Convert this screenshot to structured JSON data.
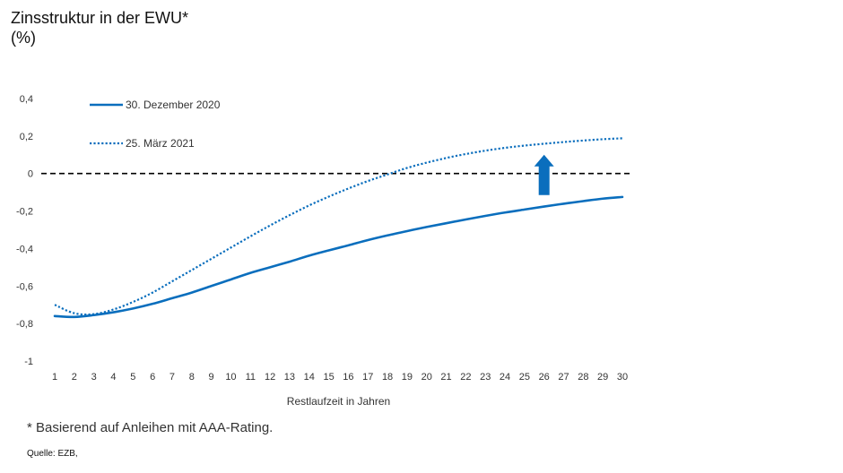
{
  "chart_data": {
    "type": "line",
    "title": "Zinsstruktur in der EWU*",
    "unit": "(%)",
    "xlabel": "Restlaufzeit in Jahren",
    "ylabel": "",
    "x": [
      1,
      2,
      3,
      4,
      5,
      6,
      7,
      8,
      9,
      10,
      11,
      12,
      13,
      14,
      15,
      16,
      17,
      18,
      19,
      20,
      21,
      22,
      23,
      24,
      25,
      26,
      27,
      28,
      29,
      30
    ],
    "xlim": [
      1,
      30
    ],
    "ylim": [
      -1,
      0.4
    ],
    "yticks": [
      0.4,
      0.2,
      0,
      -0.2,
      -0.4,
      -0.6,
      -0.8,
      -1
    ],
    "ytick_labels": [
      "0,4",
      "0,2",
      "0",
      "-0,2",
      "-0,4",
      "-0,6",
      "-0,8",
      "-1"
    ],
    "series": [
      {
        "name": "30. Dezember 2020",
        "style": "solid",
        "color": "#0a6ebd",
        "values": [
          -0.76,
          -0.765,
          -0.755,
          -0.74,
          -0.72,
          -0.695,
          -0.665,
          -0.635,
          -0.6,
          -0.565,
          -0.53,
          -0.5,
          -0.47,
          -0.438,
          -0.41,
          -0.383,
          -0.355,
          -0.33,
          -0.307,
          -0.285,
          -0.265,
          -0.245,
          -0.226,
          -0.208,
          -0.192,
          -0.176,
          -0.161,
          -0.147,
          -0.134,
          -0.125
        ]
      },
      {
        "name": "25. März 2021",
        "style": "dotted",
        "color": "#0a6ebd",
        "values": [
          -0.7,
          -0.745,
          -0.75,
          -0.725,
          -0.685,
          -0.635,
          -0.575,
          -0.515,
          -0.455,
          -0.395,
          -0.335,
          -0.277,
          -0.222,
          -0.17,
          -0.123,
          -0.08,
          -0.04,
          -0.005,
          0.03,
          0.058,
          0.083,
          0.104,
          0.122,
          0.137,
          0.149,
          0.159,
          0.168,
          0.176,
          0.183,
          0.188
        ]
      }
    ],
    "reference_line": {
      "y": 0,
      "style": "dashed",
      "color": "#000000"
    },
    "annotation": {
      "type": "up-arrow",
      "x": 26,
      "y_from": -0.115,
      "y_to": 0.1,
      "color": "#0a6ebd"
    },
    "legend_position": "top-left",
    "grid": false
  },
  "footnote": "* Basierend auf Anleihen mit AAA-Rating.",
  "source": "Quelle: EZB,"
}
